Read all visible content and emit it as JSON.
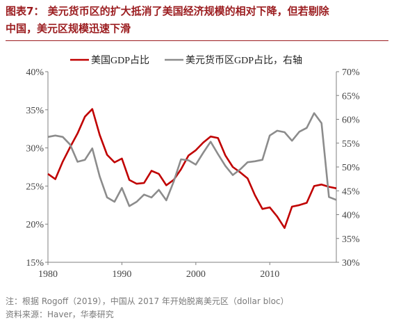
{
  "title": {
    "line1": "图表7：  美元货币区的扩大抵消了美国经济规模的相对下降，但若剔除",
    "line2": "中国，美元区规模迅速下滑"
  },
  "notes": {
    "note": "注：根据 Rogoff（2019），中国从 2017 年开始脱离美元区（dollar bloc）",
    "source": "资料来源：Haver，华泰研究"
  },
  "colors": {
    "us_series": "#c00000",
    "usd_zone_series": "#8c8c8c",
    "title": "#9b1c1f"
  },
  "chart_data": {
    "type": "line",
    "title": "",
    "xlabel": "",
    "ylabel": "",
    "x_ticks": [
      "1980",
      "1990",
      "2000",
      "2010"
    ],
    "xlim": [
      1980,
      2019
    ],
    "y_left": {
      "ticks": [
        "15%",
        "20%",
        "25%",
        "30%",
        "35%",
        "40%"
      ],
      "lim": [
        15,
        40
      ]
    },
    "y_right": {
      "ticks": [
        "30%",
        "35%",
        "40%",
        "45%",
        "50%",
        "55%",
        "60%",
        "65%",
        "70%"
      ],
      "lim": [
        30,
        70
      ]
    },
    "legend_position": "top",
    "grid": false,
    "series": [
      {
        "name": "美国GDP占比",
        "axis": "left",
        "color": "#c00000",
        "x": [
          1980,
          1981,
          1982,
          1983,
          1984,
          1985,
          1986,
          1987,
          1988,
          1989,
          1990,
          1991,
          1992,
          1993,
          1994,
          1995,
          1996,
          1997,
          1998,
          1999,
          2000,
          2001,
          2002,
          2003,
          2004,
          2005,
          2006,
          2007,
          2008,
          2009,
          2010,
          2011,
          2012,
          2013,
          2014,
          2015,
          2016,
          2017,
          2018,
          2019
        ],
        "values": [
          26.6,
          25.9,
          28.2,
          30.1,
          31.9,
          34.1,
          35.1,
          31.7,
          29.1,
          28.1,
          28.6,
          25.8,
          25.3,
          25.4,
          27.0,
          26.6,
          25.1,
          25.8,
          27.2,
          29.0,
          29.7,
          30.7,
          31.5,
          31.3,
          29.0,
          27.5,
          26.8,
          26.0,
          23.8,
          22.0,
          22.2,
          21.0,
          19.5,
          22.3,
          22.5,
          22.8,
          25.0,
          25.2,
          24.9,
          24.7
        ]
      },
      {
        "name": "美元货币区GDP占比，右轴",
        "axis": "right",
        "color": "#8c8c8c",
        "x": [
          1980,
          1981,
          1982,
          1983,
          1984,
          1985,
          1986,
          1987,
          1988,
          1989,
          1990,
          1991,
          1992,
          1993,
          1994,
          1995,
          1996,
          1997,
          1998,
          1999,
          2000,
          2001,
          2002,
          2003,
          2004,
          2005,
          2006,
          2007,
          2008,
          2009,
          2010,
          2011,
          2012,
          2013,
          2014,
          2015,
          2016,
          2017,
          2018,
          2019
        ],
        "values": [
          56.3,
          56.6,
          56.3,
          54.7,
          51.1,
          51.5,
          53.9,
          48.0,
          43.6,
          42.7,
          45.6,
          41.8,
          42.7,
          44.2,
          43.6,
          45.2,
          43.0,
          46.9,
          51.6,
          51.4,
          50.5,
          53.0,
          55.3,
          52.7,
          50.2,
          48.3,
          49.5,
          51.0,
          51.2,
          51.5,
          56.6,
          57.6,
          57.3,
          55.5,
          57.4,
          58.2,
          61.3,
          59.2,
          43.7,
          43.1
        ]
      }
    ]
  }
}
